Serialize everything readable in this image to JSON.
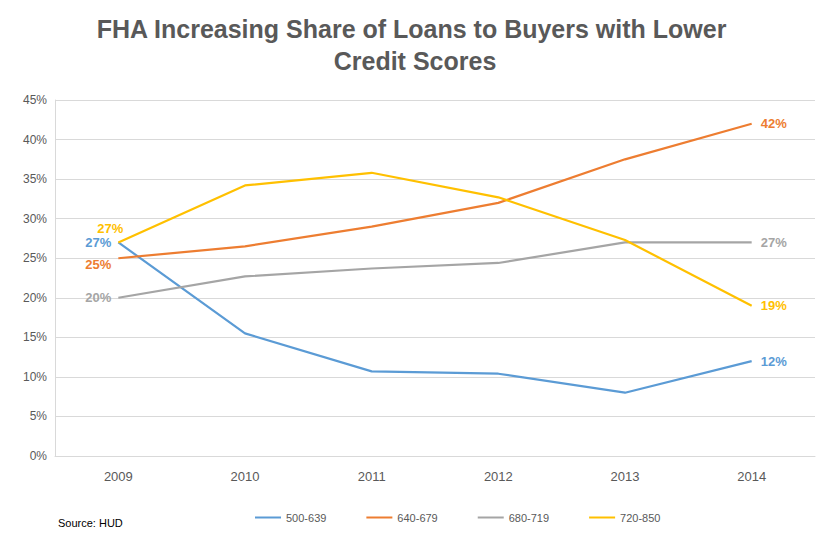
{
  "chart_data": {
    "type": "line",
    "title": "FHA Increasing Share of Loans to Buyers with Lower Credit Scores",
    "source": "Source: HUD",
    "categories": [
      "2009",
      "2010",
      "2011",
      "2012",
      "2013",
      "2014"
    ],
    "series": [
      {
        "name": "500-639",
        "color": "#5b9bd5",
        "values": [
          27,
          15.5,
          10.7,
          10.4,
          8,
          12
        ],
        "value_labels": [
          "27%",
          null,
          null,
          null,
          null,
          "12%"
        ]
      },
      {
        "name": "640-679",
        "color": "#ed7d31",
        "values": [
          25,
          26.5,
          29,
          32,
          37.5,
          42
        ],
        "value_labels": [
          "25%",
          null,
          null,
          null,
          null,
          "42%"
        ]
      },
      {
        "name": "680-719",
        "color": "#a5a5a5",
        "values": [
          20,
          22.7,
          23.7,
          24.4,
          27,
          27
        ],
        "value_labels": [
          "20%",
          null,
          null,
          null,
          null,
          "27%"
        ]
      },
      {
        "name": "720-850",
        "color": "#ffc000",
        "values": [
          27,
          34.2,
          35.8,
          32.7,
          27.3,
          19
        ],
        "value_labels": [
          "27%",
          null,
          null,
          null,
          null,
          "19%"
        ]
      }
    ],
    "ylim": [
      0,
      45
    ],
    "yticks": [
      {
        "value": 0,
        "label": "0%"
      },
      {
        "value": 5,
        "label": "5%"
      },
      {
        "value": 10,
        "label": "10%"
      },
      {
        "value": 15,
        "label": "15%"
      },
      {
        "value": 20,
        "label": "20%"
      },
      {
        "value": 25,
        "label": "25%"
      },
      {
        "value": 30,
        "label": "30%"
      },
      {
        "value": 35,
        "label": "35%"
      },
      {
        "value": 40,
        "label": "40%"
      },
      {
        "value": 45,
        "label": "45%"
      }
    ],
    "grid": true,
    "legend": "bottom",
    "marker": "none",
    "data_labels": true
  }
}
